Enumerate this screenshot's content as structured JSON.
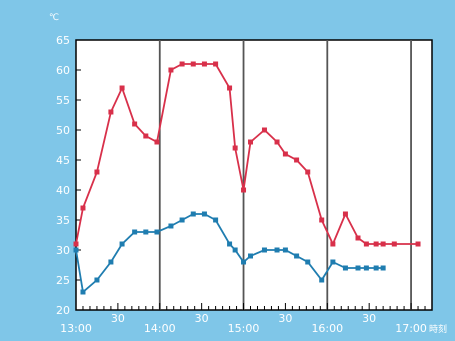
{
  "chart_data": {
    "type": "line",
    "ylabel": "℃",
    "xunit": "時刻",
    "ylim": [
      20,
      65
    ],
    "yticks": [
      20,
      25,
      30,
      35,
      40,
      45,
      50,
      55,
      60,
      65
    ],
    "xlim": [
      0,
      255
    ],
    "xticks": [
      {
        "t": 0,
        "label": "13:00"
      },
      {
        "t": 30,
        "label": "30"
      },
      {
        "t": 60,
        "label": "14:00"
      },
      {
        "t": 90,
        "label": "30"
      },
      {
        "t": 120,
        "label": "15:00"
      },
      {
        "t": 150,
        "label": "30"
      },
      {
        "t": 180,
        "label": "16:00"
      },
      {
        "t": 210,
        "label": "30"
      },
      {
        "t": 240,
        "label": "17:00"
      }
    ],
    "hour_lines": [
      60,
      120,
      180,
      240
    ],
    "grid": false,
    "legend": "none",
    "series": [
      {
        "color": "#d8304a",
        "x": [
          0,
          5,
          15,
          25,
          33,
          42,
          50,
          58,
          68,
          76,
          84,
          92,
          100,
          110,
          114,
          120,
          125,
          135,
          144,
          150,
          158,
          166,
          176,
          184,
          193,
          202,
          208,
          215,
          220,
          228,
          245
        ],
        "y": [
          31,
          37,
          43,
          53,
          57,
          51,
          49,
          48,
          60,
          61,
          61,
          61,
          61,
          57,
          47,
          40,
          48,
          50,
          48,
          46,
          45,
          43,
          35,
          31,
          36,
          32,
          31,
          31,
          31,
          31,
          31
        ]
      },
      {
        "color": "#1f7db0",
        "x": [
          0,
          5,
          15,
          25,
          33,
          42,
          50,
          58,
          68,
          76,
          84,
          92,
          100,
          110,
          114,
          120,
          125,
          135,
          144,
          150,
          158,
          166,
          176,
          184,
          193,
          202,
          208,
          215,
          220
        ],
        "y": [
          30,
          23,
          25,
          28,
          31,
          33,
          33,
          33,
          34,
          35,
          36,
          36,
          35,
          31,
          30,
          28,
          29,
          30,
          30,
          30,
          29,
          28,
          25,
          28,
          27,
          27,
          27,
          27,
          27
        ]
      }
    ]
  }
}
